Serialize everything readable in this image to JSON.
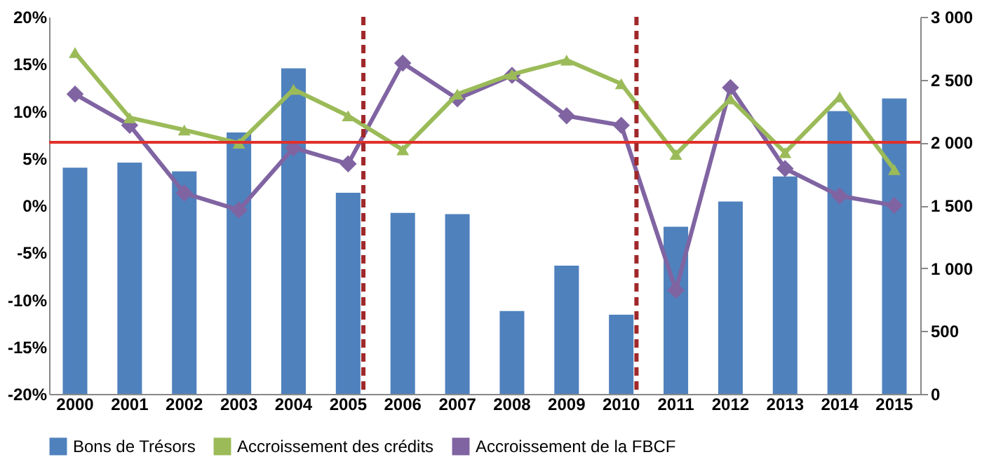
{
  "chart_data": {
    "type": "bar",
    "categories": [
      "2000",
      "2001",
      "2002",
      "2003",
      "2004",
      "2005",
      "2006",
      "2007",
      "2008",
      "2009",
      "2010",
      "2011",
      "2012",
      "2013",
      "2014",
      "2015"
    ],
    "series": [
      {
        "name": "Bons de Trésors",
        "axis": "y2",
        "color": "#4f81bd",
        "values": [
          1800,
          1840,
          1770,
          2080,
          2590,
          1600,
          1440,
          1430,
          660,
          1020,
          630,
          1330,
          1530,
          1730,
          2250,
          2350
        ]
      },
      {
        "name": "Accroissement des crédits",
        "type": "line",
        "marker": "triangle",
        "color": "#9bbb59",
        "values": [
          16.2,
          9.3,
          8.0,
          6.6,
          12.3,
          9.5,
          5.9,
          11.8,
          13.9,
          15.4,
          12.9,
          5.4,
          11.3,
          5.6,
          11.5,
          3.8
        ]
      },
      {
        "name": "Accroissement de la FBCF",
        "type": "line",
        "marker": "diamond",
        "color": "#8064a2",
        "values": [
          11.8,
          8.5,
          1.3,
          -0.5,
          6.1,
          4.4,
          15.1,
          11.3,
          13.8,
          9.5,
          8.5,
          -9.0,
          12.5,
          3.9,
          1.0,
          0.0
        ]
      }
    ],
    "ylim": [
      -20,
      20
    ],
    "yticks": [
      {
        "value": -20,
        "label": "-20%"
      },
      {
        "value": -15,
        "label": "-15%"
      },
      {
        "value": -10,
        "label": "-10%"
      },
      {
        "value": -5,
        "label": "-5%"
      },
      {
        "value": 0,
        "label": "0%"
      },
      {
        "value": 5,
        "label": "5%"
      },
      {
        "value": 10,
        "label": "10%"
      },
      {
        "value": 15,
        "label": "15%"
      },
      {
        "value": 20,
        "label": "20%"
      }
    ],
    "y2lim": [
      0,
      3000
    ],
    "y2ticks": [
      0,
      500,
      {
        "value": 1000,
        "label": "1 000"
      },
      {
        "value": 1500,
        "label": "1 500"
      },
      {
        "value": 2000,
        "label": "2 000"
      },
      {
        "value": 2500,
        "label": "2 500"
      },
      {
        "value": 3000,
        "label": "3 000"
      }
    ],
    "ref_lines": [
      {
        "axis": "y",
        "value": 6.7,
        "color": "#e0302a",
        "line_style": "solid"
      },
      {
        "axis": "x",
        "value": "2005",
        "color": "#a0282a",
        "line_style": "dashed"
      },
      {
        "axis": "x",
        "value": "2010",
        "color": "#a0282a",
        "line_style": "dashed"
      }
    ],
    "grid": false,
    "legend": "bottom",
    "line_style": "solid"
  }
}
